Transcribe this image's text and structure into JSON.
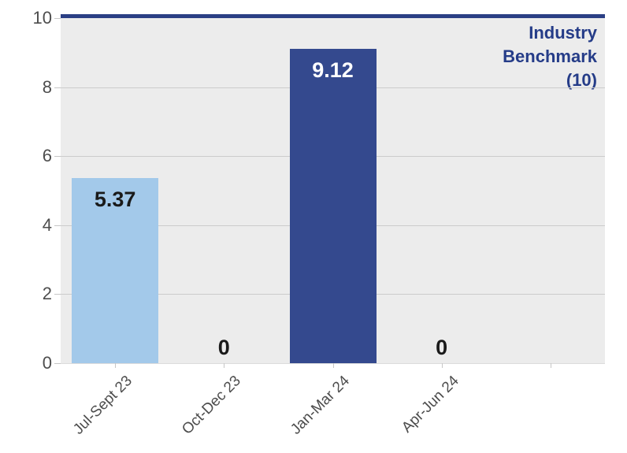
{
  "chart_data": {
    "type": "bar",
    "title": "",
    "xlabel": "",
    "ylabel": "",
    "categories": [
      "Jul-Sept 23",
      "Oct-Dec 23",
      "Jan-Mar 24",
      "Apr-Jun 24"
    ],
    "values": [
      5.37,
      0,
      9.12,
      0
    ],
    "value_labels": [
      "5.37",
      "0",
      "9.12",
      "0"
    ],
    "bar_colors": [
      "#a3c9ea",
      null,
      "#34498e",
      null
    ],
    "value_label_colors": [
      "#1a1a1a",
      "#1a1a1a",
      "#ffffff",
      "#1a1a1a"
    ],
    "ylim": [
      0,
      10
    ],
    "y_ticks": [
      0,
      2,
      4,
      6,
      8,
      10
    ],
    "x_slot_count": 5,
    "grid": true,
    "legend": "none",
    "benchmark": {
      "value": 10,
      "label_lines": [
        "Industry",
        "Benchmark",
        "(10)"
      ]
    },
    "colors": {
      "light_bar": "#a3c9ea",
      "dark_bar": "#34498e",
      "benchmark_line": "#2b3f85",
      "benchmark_text": "#253c88",
      "plot_background": "#ececec",
      "gridline": "#cccccc",
      "tick": "#c6c6c6",
      "axis_text": "#4d4d4d",
      "page_background": "#ffffff"
    }
  }
}
